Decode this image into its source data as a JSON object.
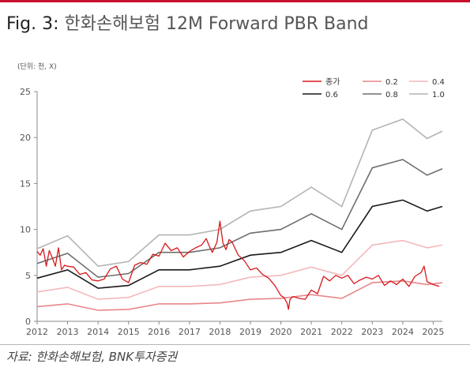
{
  "header": {
    "fig_label": "Fig. 3:",
    "title": "한화손해보험  12M Forward PBR Band"
  },
  "unit_note": "(단위: 천, X)",
  "source": "자료: 한화손해보험, BNK투자증권",
  "colors": {
    "accent": "#c8102e",
    "price": "#d7191c",
    "band_0_2": "#e8868a",
    "band_0_4": "#f4b9bb",
    "band_0_6": "#1a1a1a",
    "band_0_8": "#6e6e6e",
    "band_1_0": "#b4b4b4"
  },
  "chart_data": {
    "type": "line",
    "title": "한화손해보험  12M Forward PBR Band",
    "xlabel": "",
    "ylabel": "",
    "xlim": [
      2012,
      2025.3
    ],
    "ylim": [
      0,
      25
    ],
    "yticks": [
      0,
      5,
      10,
      15,
      20,
      25
    ],
    "xticks": [
      2012,
      2013,
      2014,
      2015,
      2016,
      2017,
      2018,
      2019,
      2020,
      2021,
      2022,
      2023,
      2024,
      2025
    ],
    "grid": false,
    "legend_position": "top-right",
    "x": [
      2012.0,
      2013.0,
      2014.0,
      2015.0,
      2016.0,
      2017.0,
      2018.0,
      2019.0,
      2020.0,
      2021.0,
      2022.0,
      2023.0,
      2024.0,
      2024.8,
      2025.3
    ],
    "series": [
      {
        "name": "0.2",
        "values": [
          1.6,
          1.9,
          1.2,
          1.3,
          1.9,
          1.9,
          2.0,
          2.4,
          2.5,
          2.9,
          2.5,
          4.2,
          4.4,
          4.0,
          4.2
        ]
      },
      {
        "name": "0.4",
        "values": [
          3.2,
          3.7,
          2.4,
          2.6,
          3.8,
          3.8,
          4.0,
          4.8,
          5.0,
          5.9,
          5.0,
          8.3,
          8.8,
          8.0,
          8.3
        ]
      },
      {
        "name": "0.6",
        "values": [
          4.7,
          5.6,
          3.6,
          3.9,
          5.6,
          5.6,
          6.0,
          7.2,
          7.5,
          8.8,
          7.5,
          12.5,
          13.2,
          12.0,
          12.5
        ]
      },
      {
        "name": "0.8",
        "values": [
          6.3,
          7.4,
          4.8,
          5.2,
          7.5,
          7.5,
          8.0,
          9.6,
          10.0,
          11.7,
          10.0,
          16.7,
          17.6,
          15.9,
          16.6
        ]
      },
      {
        "name": "1.0",
        "values": [
          7.9,
          9.3,
          6.0,
          6.5,
          9.4,
          9.4,
          10.0,
          12.0,
          12.5,
          14.6,
          12.5,
          20.8,
          22.0,
          19.9,
          20.7
        ]
      }
    ],
    "price": {
      "name": "종가",
      "x": [
        2012.0,
        2012.1,
        2012.2,
        2012.3,
        2012.4,
        2012.5,
        2012.6,
        2012.7,
        2012.8,
        2012.9,
        2013.0,
        2013.2,
        2013.4,
        2013.6,
        2013.8,
        2014.0,
        2014.2,
        2014.4,
        2014.6,
        2014.8,
        2015.0,
        2015.2,
        2015.4,
        2015.6,
        2015.8,
        2016.0,
        2016.2,
        2016.4,
        2016.6,
        2016.8,
        2017.0,
        2017.2,
        2017.4,
        2017.55,
        2017.65,
        2017.75,
        2017.9,
        2018.0,
        2018.1,
        2018.2,
        2018.3,
        2018.4,
        2018.6,
        2018.8,
        2019.0,
        2019.2,
        2019.4,
        2019.6,
        2019.8,
        2020.0,
        2020.1,
        2020.2,
        2020.25,
        2020.3,
        2020.4,
        2020.6,
        2020.8,
        2021.0,
        2021.2,
        2021.4,
        2021.6,
        2021.8,
        2022.0,
        2022.2,
        2022.4,
        2022.6,
        2022.8,
        2023.0,
        2023.2,
        2023.4,
        2023.6,
        2023.8,
        2024.0,
        2024.2,
        2024.4,
        2024.6,
        2024.7,
        2024.8,
        2025.0,
        2025.2
      ],
      "values": [
        7.6,
        7.2,
        7.9,
        6.0,
        7.7,
        6.9,
        6.0,
        8.0,
        5.6,
        6.1,
        6.0,
        5.9,
        5.1,
        5.3,
        4.5,
        4.4,
        4.6,
        5.7,
        6.0,
        4.6,
        4.2,
        6.1,
        6.4,
        6.2,
        7.3,
        7.1,
        8.5,
        7.7,
        8.0,
        7.0,
        7.6,
        8.0,
        8.3,
        9.0,
        8.2,
        7.5,
        8.6,
        10.9,
        8.5,
        7.8,
        8.9,
        8.6,
        7.2,
        6.6,
        5.6,
        5.8,
        5.1,
        4.7,
        3.9,
        2.8,
        2.6,
        2.0,
        1.3,
        2.4,
        2.7,
        2.5,
        2.4,
        3.4,
        3.0,
        4.9,
        4.4,
        5.0,
        4.7,
        5.0,
        4.1,
        4.5,
        4.8,
        4.6,
        5.0,
        3.9,
        4.4,
        4.0,
        4.6,
        3.8,
        4.9,
        5.3,
        6.0,
        4.3,
        4.0,
        3.8
      ]
    }
  }
}
